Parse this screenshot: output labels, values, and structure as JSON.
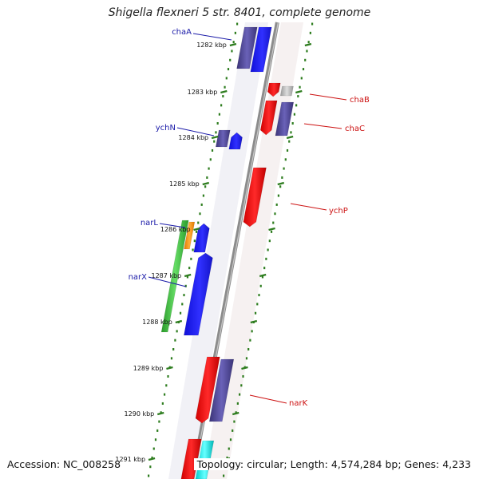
{
  "title": "Shigella flexneri 5 str. 8401, complete genome",
  "footer": {
    "accession": "Accession: NC_008258",
    "summary": "Topology: circular; Length: 4,574,284 bp; Genes: 4,233"
  },
  "colors": {
    "backbone": "#8c8c8c",
    "tick_marks": "#2e7d1f",
    "forward_label": "#1a1aa8",
    "reverse_label": "#cc1111"
  },
  "ticks": [
    {
      "label": "1282 kbp"
    },
    {
      "label": "1283 kbp"
    },
    {
      "label": "1284 kbp"
    },
    {
      "label": "1285 kbp"
    },
    {
      "label": "1286 kbp"
    },
    {
      "label": "1287 kbp"
    },
    {
      "label": "1288 kbp"
    },
    {
      "label": "1289 kbp"
    },
    {
      "label": "1290 kbp"
    },
    {
      "label": "1291 kbp"
    }
  ],
  "genes": [
    {
      "name": "chaA",
      "strand": "forward"
    },
    {
      "name": "chaB",
      "strand": "reverse"
    },
    {
      "name": "chaC",
      "strand": "reverse"
    },
    {
      "name": "ychN",
      "strand": "forward"
    },
    {
      "name": "ychP",
      "strand": "reverse"
    },
    {
      "name": "narL",
      "strand": "forward"
    },
    {
      "name": "narX",
      "strand": "forward"
    },
    {
      "name": "narK",
      "strand": "reverse"
    }
  ]
}
